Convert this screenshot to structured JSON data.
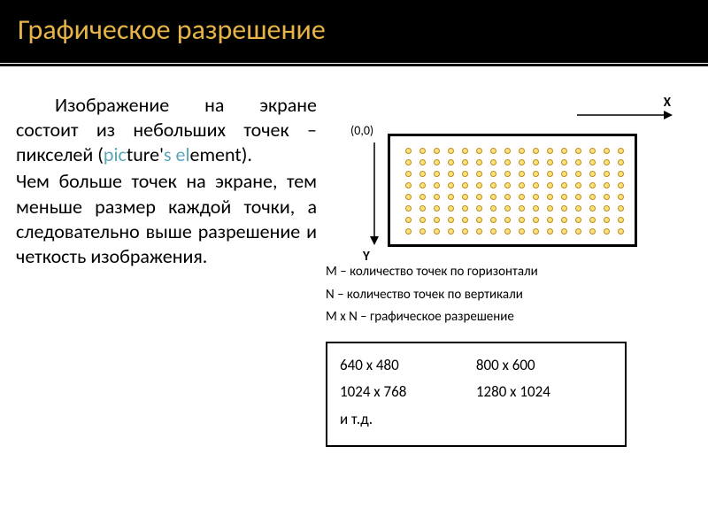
{
  "title": "Графическое разрешение",
  "paragraph1_parts": {
    "t1": "Изображение на экране состоит из небольших точек – пикселей (",
    "pic": "pic",
    "t2": "ture'",
    "s": "s",
    "t3": " ",
    "el": "el",
    "t4": "ement)."
  },
  "paragraph2": "Чем больше точек на экране, тем меньше размер каждой точки, а следовательно выше разрешение и четкость изображения.",
  "diagram": {
    "x_label": "X",
    "y_label": "Y",
    "origin": "(0,0)",
    "grid_cols": 16,
    "grid_rows": 8,
    "dot_fill": "#ffe27a",
    "dot_stroke": "#b98b1e",
    "box_border": "#000000"
  },
  "definitions": {
    "m": "M – количество точек по горизонтали",
    "n": "N – количество точек по вертикали",
    "mxn": "M x N – графическое разрешение"
  },
  "resolutions": {
    "r1": "640 x 480",
    "r2": "800 x 600",
    "r3": "1024 x 768",
    "r4": "1280 x 1024",
    "etc": "и т.д."
  },
  "colors": {
    "title_bg": "#000000",
    "title_fg": "#e5b348",
    "accent": "#5aa6b8"
  }
}
